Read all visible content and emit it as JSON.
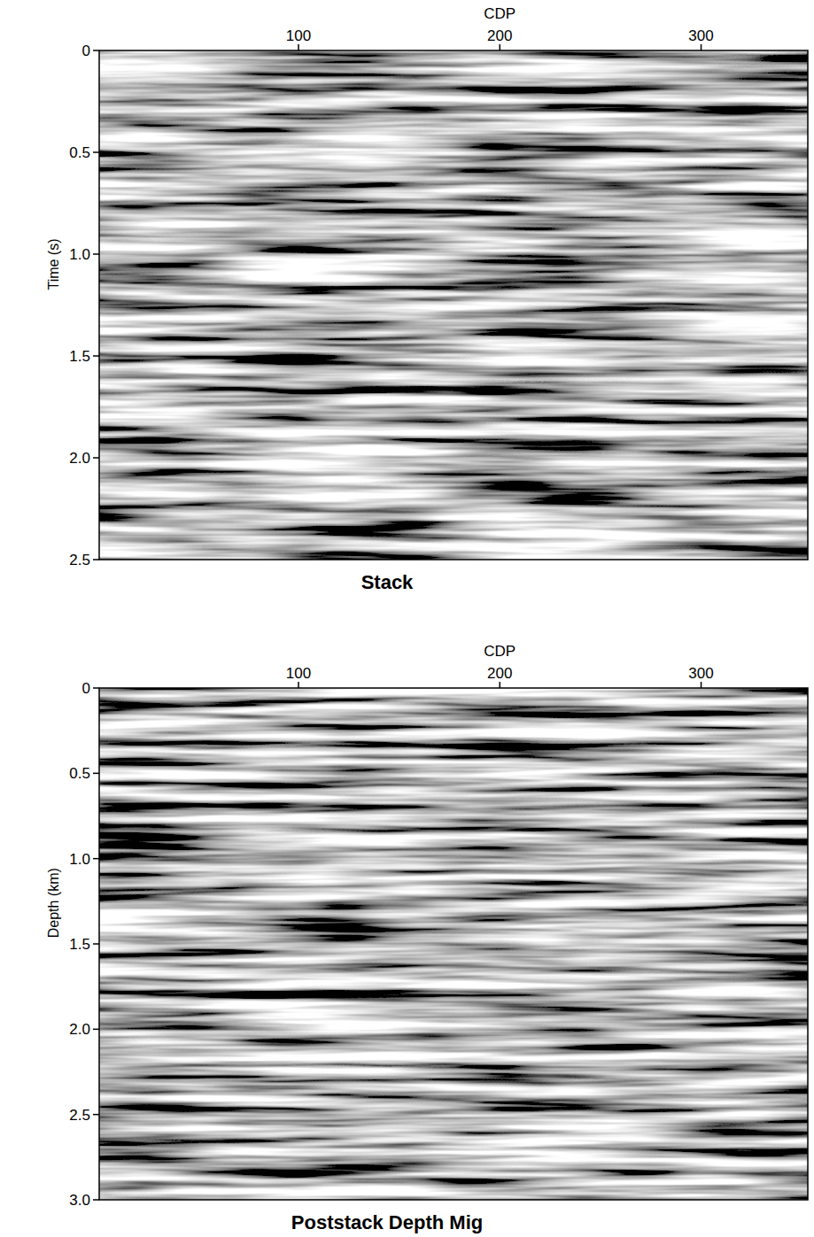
{
  "chart_data": [
    {
      "type": "seismic",
      "title": "Stack",
      "x_label": "CDP",
      "y_label": "Time (s)",
      "xlim": [
        1,
        353
      ],
      "xticks": [
        100,
        200,
        300
      ],
      "ylim": [
        0,
        2.5
      ],
      "yticks": [
        0,
        0.5,
        {
          "value": 1,
          "label": "1.0"
        },
        1.5,
        {
          "value": 2,
          "label": "2.0"
        },
        2.5
      ]
    },
    {
      "type": "seismic",
      "title": "Poststack Depth Mig",
      "x_label": "CDP",
      "y_label": "Depth (km)",
      "xlim": [
        1,
        353
      ],
      "xticks": [
        100,
        200,
        300
      ],
      "ylim": [
        0,
        3
      ],
      "yticks": [
        0,
        0.5,
        {
          "value": 1,
          "label": "1.0"
        },
        1.5,
        {
          "value": 2,
          "label": "2.0"
        },
        2.5,
        {
          "value": 3,
          "label": "3.0"
        }
      ]
    }
  ]
}
